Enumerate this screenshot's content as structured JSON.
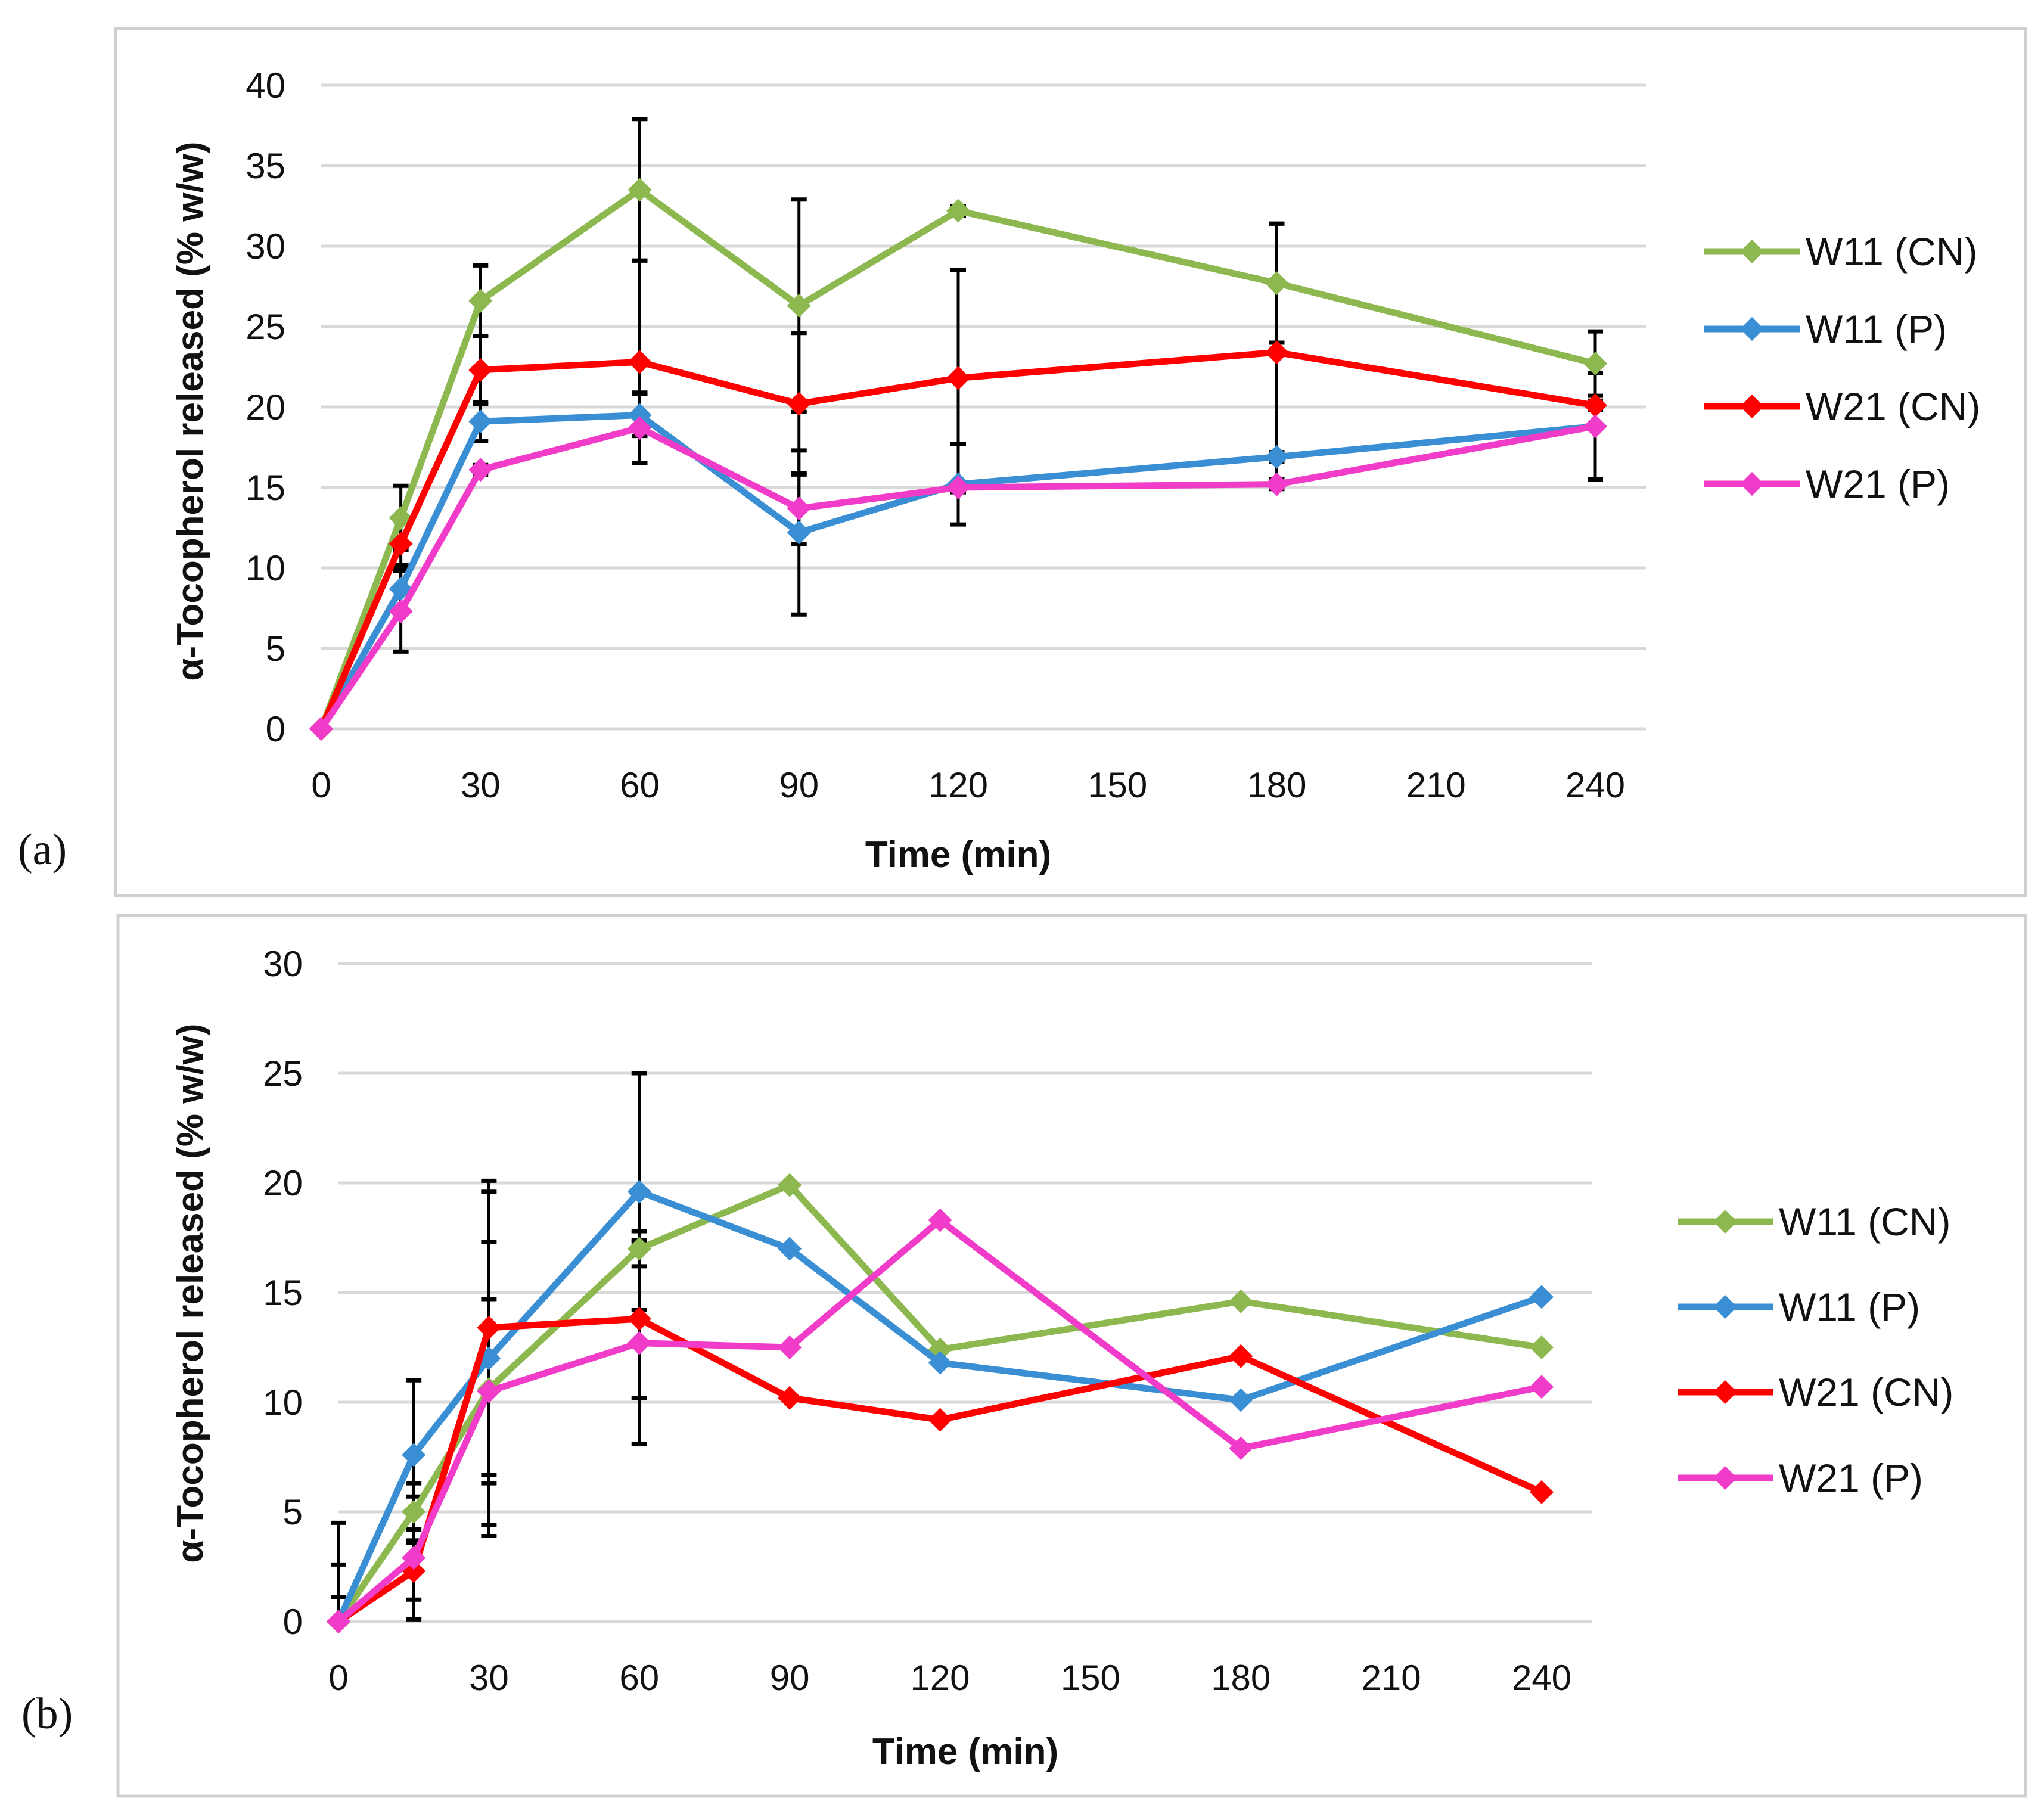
{
  "chart_data": [
    {
      "type": "line",
      "panel_label": "(a)",
      "xlabel": "Time (min)",
      "ylabel": "α-Tocopherol released (% w/w)",
      "xlim": [
        0,
        240
      ],
      "ylim": [
        0,
        40
      ],
      "x_ticks": [
        0,
        30,
        60,
        90,
        120,
        150,
        180,
        210,
        240
      ],
      "y_ticks": [
        0,
        5,
        10,
        15,
        20,
        25,
        30,
        35,
        40
      ],
      "grid": true,
      "legend_position": "right",
      "x": [
        0,
        15,
        30,
        60,
        90,
        120,
        180,
        240
      ],
      "series": [
        {
          "name": "W11 (CN)",
          "color": "#8cb84f",
          "values": [
            0,
            13.1,
            26.6,
            33.5,
            26.3,
            32.2,
            27.7,
            22.7
          ],
          "errors": [
            0,
            2.0,
            2.2,
            4.4,
            6.6,
            0.3,
            3.7,
            2.0
          ]
        },
        {
          "name": "W11 (P)",
          "color": "#3a8fd4",
          "values": [
            0,
            8.7,
            19.1,
            19.5,
            12.2,
            15.2,
            16.9,
            18.8
          ],
          "errors": [
            0,
            1.5,
            1.2,
            1.3,
            5.1,
            2.5,
            0.3,
            3.3
          ]
        },
        {
          "name": "W21 (CN)",
          "color": "#ff0000",
          "values": [
            0,
            11.5,
            22.3,
            22.8,
            20.2,
            21.8,
            23.4,
            20.1
          ],
          "errors": [
            0,
            1.5,
            2.1,
            6.3,
            4.4,
            6.7,
            8.0,
            0.3
          ]
        },
        {
          "name": "W21 (P)",
          "color": "#f03cc8",
          "values": [
            0,
            7.3,
            16.1,
            18.7,
            13.7,
            15.0,
            15.2,
            18.8
          ],
          "errors": [
            0,
            2.5,
            0.3,
            2.2,
            2.2,
            0.3,
            0.3,
            3.3
          ]
        }
      ]
    },
    {
      "type": "line",
      "panel_label": "(b)",
      "xlabel": "Time (min)",
      "ylabel": "α-Tocopherol released (% w/w)",
      "xlim": [
        0,
        240
      ],
      "ylim": [
        0,
        30
      ],
      "x_ticks": [
        0,
        30,
        60,
        90,
        120,
        150,
        180,
        210,
        240
      ],
      "y_ticks": [
        0,
        5,
        10,
        15,
        20,
        25,
        30
      ],
      "grid": true,
      "legend_position": "right",
      "x": [
        0,
        15,
        30,
        60,
        90,
        120,
        180,
        240
      ],
      "series": [
        {
          "name": "W11 (CN)",
          "color": "#8cb84f",
          "values": [
            0,
            5.0,
            10.6,
            17.0,
            19.9,
            12.4,
            14.6,
            12.5
          ],
          "errors": [
            2.6,
            1.3,
            6.7,
            0.8,
            0,
            0,
            0,
            0
          ]
        },
        {
          "name": "W11 (P)",
          "color": "#3a8fd4",
          "values": [
            0,
            7.6,
            12.0,
            19.6,
            17.0,
            11.8,
            10.1,
            14.8
          ],
          "errors": [
            4.5,
            3.4,
            7.6,
            5.4,
            0,
            0,
            0,
            0
          ]
        },
        {
          "name": "W21 (CN)",
          "color": "#ff0000",
          "values": [
            0,
            2.3,
            13.4,
            13.8,
            10.2,
            9.2,
            12.1,
            5.9
          ],
          "errors": [
            1.1,
            1.3,
            6.7,
            3.6,
            0,
            0,
            0,
            0
          ]
        },
        {
          "name": "W21 (P)",
          "color": "#f03cc8",
          "values": [
            0,
            2.9,
            10.5,
            12.7,
            12.5,
            18.3,
            7.9,
            10.7
          ],
          "errors": [
            0,
            2.8,
            4.2,
            4.6,
            0,
            0,
            0,
            0
          ]
        }
      ]
    }
  ]
}
